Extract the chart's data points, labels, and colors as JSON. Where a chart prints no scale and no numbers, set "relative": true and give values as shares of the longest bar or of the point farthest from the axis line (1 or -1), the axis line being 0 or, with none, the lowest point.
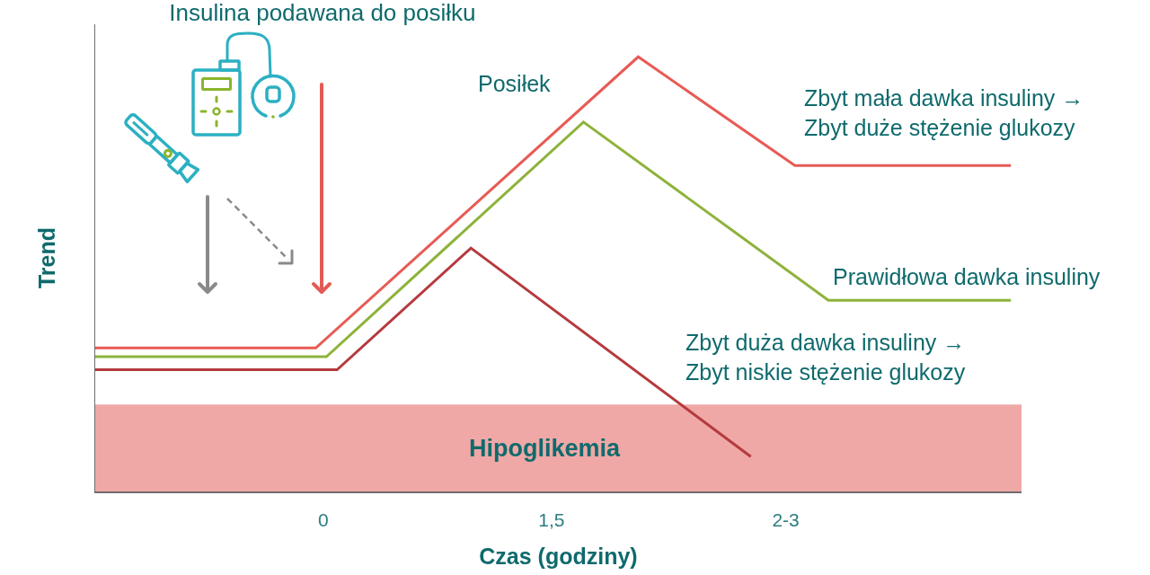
{
  "chart_data": {
    "type": "line",
    "title": "Insulina podawana do posiłku",
    "xlabel": "Czas (godziny)",
    "ylabel": "Trend",
    "relative": true,
    "xlim": [
      -1.5,
      4.59
    ],
    "xticks": [
      0,
      {
        "value": 1.5,
        "label": "1,5"
      },
      {
        "value": 3.04,
        "label": "2-3"
      }
    ],
    "series": [
      {
        "name": "Zbyt mała dawka insuliny →\nZbyt duże stężenie glukozy",
        "color": "#e85a55",
        "x": [
          -1.5,
          -0.05,
          2.07,
          3.1,
          4.52
        ],
        "values": [
          0.33,
          0.33,
          1,
          0.75,
          0.75
        ]
      },
      {
        "name": "Prawidłowa dawka insuliny",
        "color": "#8db33a",
        "x": [
          -1.5,
          0.02,
          1.71,
          3.32,
          4.52
        ],
        "values": [
          0.31,
          0.31,
          0.85,
          0.44,
          0.44
        ]
      },
      {
        "name": "Zbyt duża dawka insuliny →\nZbyt niskie stężenie glukozy",
        "color": "#b53a3f",
        "x": [
          -1.5,
          0.09,
          0.97,
          2.81
        ],
        "values": [
          0.28,
          0.28,
          0.56,
          0.08
        ]
      }
    ],
    "bands": [
      {
        "axis": "y",
        "from": 0,
        "to": 0.2,
        "label": "Hipoglikemia",
        "color": "#efa8a6"
      }
    ],
    "annotations": [
      "Posiłek"
    ]
  }
}
